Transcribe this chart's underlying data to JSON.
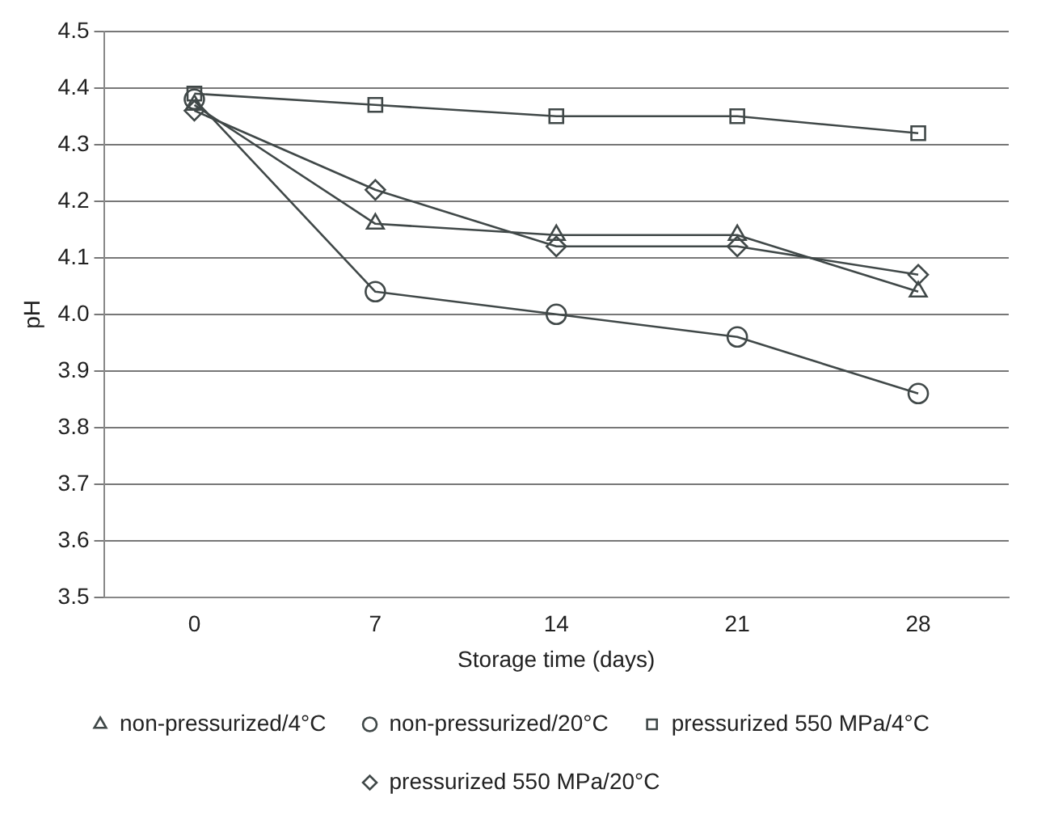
{
  "chart_data": {
    "type": "line",
    "xlabel": "Storage time (days)",
    "ylabel": "pH",
    "categories": [
      "0",
      "7",
      "14",
      "21",
      "28"
    ],
    "ylim": [
      3.5,
      4.5
    ],
    "yticks": [
      3.5,
      3.6,
      3.7,
      3.8,
      3.9,
      {
        "value": 4,
        "label": "4.0"
      },
      4.1,
      4.2,
      4.3,
      4.4,
      4.5
    ],
    "grid": "y",
    "legend": "bottom",
    "line_style": "solid",
    "series": [
      {
        "name": "non-pressurized/4°C",
        "color": "#404848",
        "marker": "triangle",
        "values": [
          4.37,
          4.16,
          4.14,
          4.14,
          4.04
        ]
      },
      {
        "name": "non-pressurized/20°C",
        "color": "#404848",
        "marker": "circle",
        "values": [
          4.38,
          4.04,
          4.0,
          3.96,
          3.86
        ]
      },
      {
        "name": "pressurized 550 MPa/4°C",
        "color": "#404848",
        "marker": "square",
        "values": [
          4.39,
          4.37,
          4.35,
          4.35,
          4.32
        ]
      },
      {
        "name": "pressurized 550 MPa/20°C",
        "color": "#404848",
        "marker": "diamond",
        "values": [
          4.36,
          4.22,
          4.12,
          4.12,
          4.07
        ]
      }
    ]
  }
}
